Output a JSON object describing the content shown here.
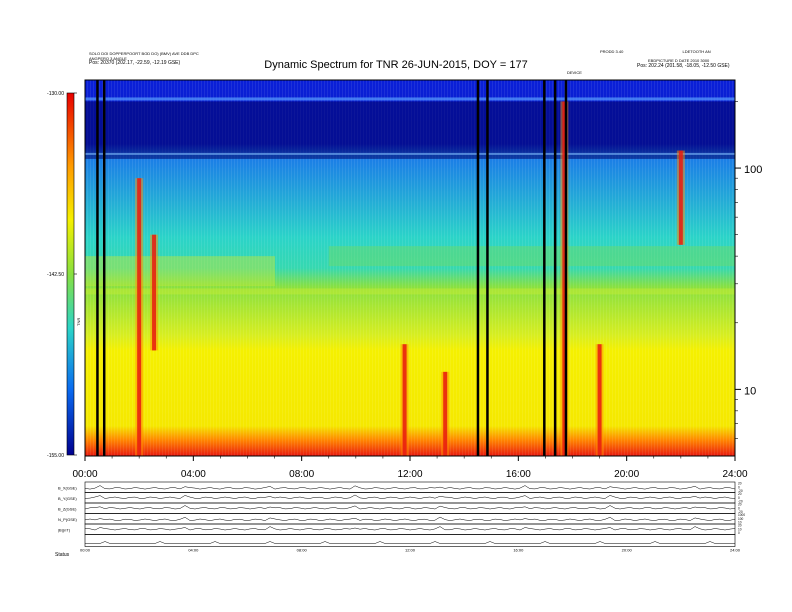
{
  "title": "Dynamic Spectrum for TNR 26-JUN-2015, DOY = 177",
  "header_left": [
    "SOLO  DOI DOPPERPOORT BOD DO) (BMV)  AVE DDB DPC",
    "ANGPERO 3 ANGLE",
    "Pos:   20370 (202.17, -22.59, -12.19 GSE)"
  ],
  "header_right": [
    "PRODD 3.40",
    "LDETOOTH AN",
    "EBDPICTURE D DATE 2010 3000",
    "Pos:   202.24 (201.58, -18.05, -12.50 GSE)"
  ],
  "event_label": "DEVICE",
  "colorbar": {
    "label": "TNR",
    "ticks": [
      "-130.00",
      "-142.50",
      "-155.00"
    ]
  },
  "panel_labels": [
    "B_X(GSE)",
    "B_Y(GSE)",
    "B_Z(GSE)",
    "N_P(GSE)",
    "|B|(nT)"
  ],
  "footer_label": "Status",
  "chart_data": {
    "type": "heatmap",
    "title": "Dynamic Spectrum for TNR 26-JUN-2015, DOY = 177",
    "x_tick_labels": [
      "00:00",
      "04:00",
      "08:00",
      "12:00",
      "16:00",
      "20:00",
      "24:00"
    ],
    "x_range_hours": [
      0,
      24
    ],
    "y_scale": "log",
    "y_range": [
      5,
      250
    ],
    "y_tick_labels": [
      "100",
      "10"
    ],
    "colorbar_range": [
      -155.0,
      -130.0
    ],
    "colorbar_tick_labels": [
      "-130.00",
      "-142.50",
      "-155.00"
    ],
    "colors": {
      "high_freq_band": "#0a1fd8",
      "mid_band": "#2bd4c8",
      "transition_band": "#88e040",
      "low_band": "#f5f000",
      "floor_band": "#e81a10",
      "gap": "#000000"
    },
    "band_edges_freq": [
      200,
      110,
      40,
      28,
      18,
      10,
      6.5
    ],
    "data_gaps_hours": [
      0.45,
      0.7,
      14.5,
      14.85,
      16.95,
      17.35,
      17.75
    ],
    "bursts": [
      {
        "hour": 2.0,
        "f_hi": 90,
        "f_lo": 5,
        "color": "#e81a10"
      },
      {
        "hour": 2.55,
        "f_hi": 50,
        "f_lo": 15,
        "color": "#e81a10"
      },
      {
        "hour": 11.8,
        "f_hi": 16,
        "f_lo": 5,
        "color": "#e81a10"
      },
      {
        "hour": 13.3,
        "f_hi": 12,
        "f_lo": 5,
        "color": "#e81a10"
      },
      {
        "hour": 17.7,
        "f_hi": 200,
        "f_lo": 5,
        "color": "#e81a10"
      },
      {
        "hour": 19.0,
        "f_hi": 16,
        "f_lo": 5,
        "color": "#e81a10"
      },
      {
        "hour": 22.0,
        "f_hi": 120,
        "f_lo": 45,
        "color": "#e81a10"
      }
    ],
    "second_panel_tick_labels": [
      "00:00",
      "04:00",
      "08:00",
      "12:00",
      "16:00",
      "20:00",
      "24:00"
    ],
    "second_panel_right_ticks": [
      [
        "20",
        "0",
        "-20"
      ],
      [
        "20",
        "0",
        "-20"
      ],
      [
        "20",
        "0",
        "-20"
      ],
      [
        "1000",
        "100",
        "10"
      ],
      [
        "20",
        "10",
        "0"
      ]
    ]
  }
}
